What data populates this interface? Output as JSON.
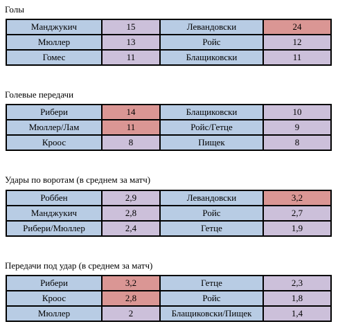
{
  "sections": [
    {
      "title": "Голы",
      "rows": [
        {
          "left_name": "Манджукич",
          "left_value": "15",
          "left_hl": "purple",
          "right_name": "Левандовски",
          "right_value": "24",
          "right_hl": "red"
        },
        {
          "left_name": "Мюллер",
          "left_value": "13",
          "left_hl": "purple",
          "right_name": "Ройс",
          "right_value": "12",
          "right_hl": "purple"
        },
        {
          "left_name": "Гомес",
          "left_value": "11",
          "left_hl": "purple",
          "right_name": "Блащиковски",
          "right_value": "11",
          "right_hl": "purple"
        }
      ]
    },
    {
      "title": "Голевые передачи",
      "rows": [
        {
          "left_name": "Рибери",
          "left_value": "14",
          "left_hl": "red",
          "right_name": "Блащиковски",
          "right_value": "10",
          "right_hl": "purple"
        },
        {
          "left_name": "Мюллер/Лам",
          "left_value": "11",
          "left_hl": "red",
          "right_name": "Ройс/Гетце",
          "right_value": "9",
          "right_hl": "purple"
        },
        {
          "left_name": "Кроос",
          "left_value": "8",
          "left_hl": "purple",
          "right_name": "Пищек",
          "right_value": "8",
          "right_hl": "purple"
        }
      ]
    },
    {
      "title": "Удары по воротам (в среднем за матч)",
      "rows": [
        {
          "left_name": "Роббен",
          "left_value": "2,9",
          "left_hl": "purple",
          "right_name": "Левандовски",
          "right_value": "3,2",
          "right_hl": "red"
        },
        {
          "left_name": "Манджукич",
          "left_value": "2,8",
          "left_hl": "purple",
          "right_name": "Ройс",
          "right_value": "2,7",
          "right_hl": "purple"
        },
        {
          "left_name": "Рибери/Мюллер",
          "left_value": "2,4",
          "left_hl": "purple",
          "right_name": "Гетце",
          "right_value": "1,9",
          "right_hl": "purple"
        }
      ]
    },
    {
      "title": "Передачи под удар (в среднем за матч)",
      "rows": [
        {
          "left_name": "Рибери",
          "left_value": "3,2",
          "left_hl": "red",
          "right_name": "Гетце",
          "right_value": "2,3",
          "right_hl": "purple"
        },
        {
          "left_name": "Кроос",
          "left_value": "2,8",
          "left_hl": "red",
          "right_name": "Ройс",
          "right_value": "1,8",
          "right_hl": "purple"
        },
        {
          "left_name": "Мюллер",
          "left_value": "2",
          "left_hl": "purple",
          "right_name": "Блащиковски/Пищек",
          "right_value": "1,4",
          "right_hl": "purple"
        }
      ]
    }
  ],
  "colors": {
    "name_cell": "#b8cce4",
    "value_cell": "#ccc0da",
    "highlight_cell": "#da9694"
  }
}
